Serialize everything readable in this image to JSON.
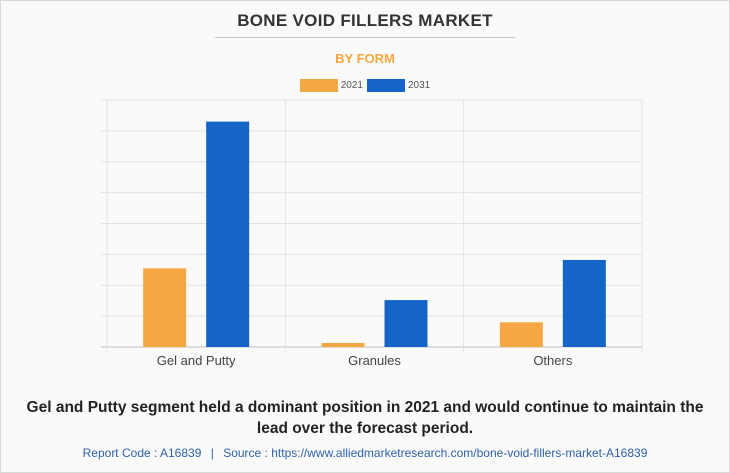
{
  "title": "BONE VOID FILLERS MARKET",
  "subtitle": "BY FORM",
  "legend": [
    {
      "label": "2021",
      "color": "#f4a742"
    },
    {
      "label": "2031",
      "color": "#1565c8"
    }
  ],
  "caption": "Gel and Putty segment held a dominant position in 2021 and would continue to maintain the lead over the forecast period.",
  "footer": {
    "report_code": "Report Code : A16839",
    "separator": "|",
    "source": "Source : https://www.alliedmarketresearch.com/bone-void-fillers-market-A16839"
  },
  "chart_data": {
    "type": "bar",
    "categories": [
      "Gel and Putty",
      "Granules",
      "Others"
    ],
    "series": [
      {
        "name": "2021",
        "color": "#f4a742",
        "values": [
          25.5,
          1.3,
          8.0
        ]
      },
      {
        "name": "2031",
        "color": "#1565c8",
        "values": [
          73.0,
          15.2,
          28.2
        ]
      }
    ],
    "ylim": [
      0,
      80
    ],
    "y_tick_labels_shown": false,
    "grid": true,
    "legend_position": "top-center"
  }
}
